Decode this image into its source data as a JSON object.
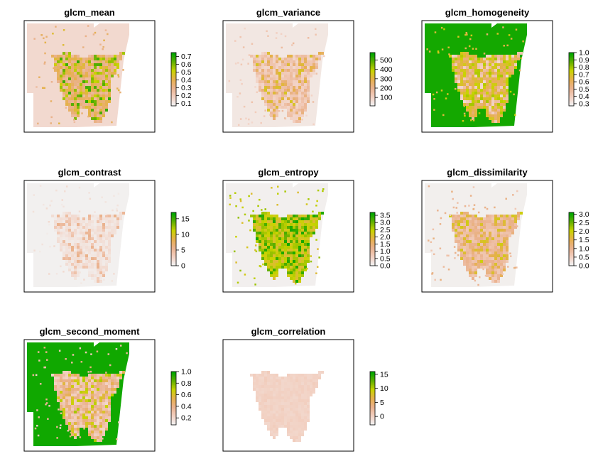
{
  "chart_data": [
    {
      "type": "heatmap",
      "title": "glcm_mean",
      "legend": {
        "ticks": [
          0.1,
          0.2,
          0.3,
          0.4,
          0.5,
          0.6,
          0.7
        ],
        "tick_labels": [
          "0.1",
          "0.2",
          "0.3",
          "0.4",
          "0.5",
          "0.6",
          "0.7"
        ],
        "range": [
          0.07,
          0.75
        ]
      },
      "value_ranges": {
        "background": [
          0.1,
          0.2
        ],
        "land": [
          0.25,
          0.45
        ],
        "hotspots": [
          0.5,
          0.7
        ]
      },
      "palette": [
        "#F2F2F2",
        "#F2CFC0",
        "#EAB28E",
        "#E6B04D",
        "#C9D300",
        "#63B000",
        "#00A600"
      ]
    },
    {
      "type": "heatmap",
      "title": "glcm_variance",
      "legend": {
        "ticks": [
          100,
          200,
          300,
          400,
          500
        ],
        "tick_labels": [
          "100",
          "200",
          "300",
          "400",
          "500"
        ],
        "range": [
          10,
          580
        ]
      },
      "value_ranges": {
        "background": [
          20,
          60
        ],
        "land": [
          80,
          180
        ],
        "hotspots": [
          200,
          350
        ]
      },
      "palette": [
        "#F2F2F2",
        "#F2CFC0",
        "#EAB28E",
        "#E6B04D",
        "#C9D300",
        "#63B000",
        "#00A600"
      ]
    },
    {
      "type": "heatmap",
      "title": "glcm_homogeneity",
      "legend": {
        "ticks": [
          0.3,
          0.4,
          0.5,
          0.6,
          0.7,
          0.8,
          0.9,
          1.0
        ],
        "tick_labels": [
          "0.3",
          "0.4",
          "0.5",
          "0.6",
          "0.7",
          "0.8",
          "0.9",
          "1.0"
        ],
        "range": [
          0.27,
          1.0
        ]
      },
      "value_ranges": {
        "background": [
          0.95,
          1.0
        ],
        "land": [
          0.55,
          0.8
        ],
        "hotspots": [
          0.35,
          0.5
        ]
      },
      "palette": [
        "#F2F2F2",
        "#F2CFC0",
        "#EAB28E",
        "#E6B04D",
        "#C9D300",
        "#63B000",
        "#00A600"
      ]
    },
    {
      "type": "heatmap",
      "title": "glcm_contrast",
      "legend": {
        "ticks": [
          0,
          5,
          10,
          15
        ],
        "tick_labels": [
          "0",
          "5",
          "10",
          "15"
        ],
        "range": [
          0,
          17
        ]
      },
      "value_ranges": {
        "background": [
          0,
          0.3
        ],
        "land": [
          0.5,
          2
        ],
        "hotspots": [
          3,
          6
        ]
      },
      "palette": [
        "#F2F2F2",
        "#F2CFC0",
        "#EAB28E",
        "#E6B04D",
        "#C9D300",
        "#63B000",
        "#00A600"
      ]
    },
    {
      "type": "heatmap",
      "title": "glcm_entropy",
      "legend": {
        "ticks": [
          0.0,
          0.5,
          1.0,
          1.5,
          2.0,
          2.5,
          3.0,
          3.5
        ],
        "tick_labels": [
          "0.0",
          "0.5",
          "1.0",
          "1.5",
          "2.0",
          "2.5",
          "3.0",
          "3.5"
        ],
        "range": [
          0,
          3.7
        ]
      },
      "value_ranges": {
        "background": [
          0,
          0.1
        ],
        "land": [
          2.0,
          2.8
        ],
        "hotspots": [
          3.0,
          3.6
        ]
      },
      "palette": [
        "#F2F2F2",
        "#F2CFC0",
        "#EAB28E",
        "#E6B04D",
        "#C9D300",
        "#63B000",
        "#00A600"
      ]
    },
    {
      "type": "heatmap",
      "title": "glcm_dissimilarity",
      "legend": {
        "ticks": [
          0.0,
          0.5,
          1.0,
          1.5,
          2.0,
          2.5,
          3.0
        ],
        "tick_labels": [
          "0.0",
          "0.5",
          "1.0",
          "1.5",
          "2.0",
          "2.5",
          "3.0"
        ],
        "range": [
          0,
          3.1
        ]
      },
      "value_ranges": {
        "background": [
          0,
          0.1
        ],
        "land": [
          0.6,
          1.2
        ],
        "hotspots": [
          1.4,
          2.0
        ]
      },
      "palette": [
        "#F2F2F2",
        "#F2CFC0",
        "#EAB28E",
        "#E6B04D",
        "#C9D300",
        "#63B000",
        "#00A600"
      ]
    },
    {
      "type": "heatmap",
      "title": "glcm_second_moment",
      "legend": {
        "ticks": [
          0.2,
          0.4,
          0.6,
          0.8,
          1.0
        ],
        "tick_labels": [
          "0.2",
          "0.4",
          "0.6",
          "0.8",
          "1.0"
        ],
        "range": [
          0.08,
          1.0
        ]
      },
      "value_ranges": {
        "background": [
          0.95,
          1.0
        ],
        "land": [
          0.2,
          0.45
        ],
        "hotspots": [
          0.5,
          0.75
        ]
      },
      "palette": [
        "#F2F2F2",
        "#F2CFC0",
        "#EAB28E",
        "#E6B04D",
        "#C9D300",
        "#63B000",
        "#00A600"
      ]
    },
    {
      "type": "heatmap",
      "title": "glcm_correlation",
      "legend": {
        "ticks": [
          0,
          5,
          10,
          15
        ],
        "tick_labels": [
          "0",
          "5",
          "10",
          "15"
        ],
        "range": [
          -3,
          16
        ]
      },
      "value_ranges": {
        "background": null,
        "land": [
          -0.6,
          0.2
        ],
        "hotspots": [
          -0.5,
          0.5
        ]
      },
      "palette": [
        "#F2F2F2",
        "#F2CFC0",
        "#EAB28E",
        "#E6B04D",
        "#C9D300",
        "#63B000",
        "#00A600"
      ]
    }
  ]
}
